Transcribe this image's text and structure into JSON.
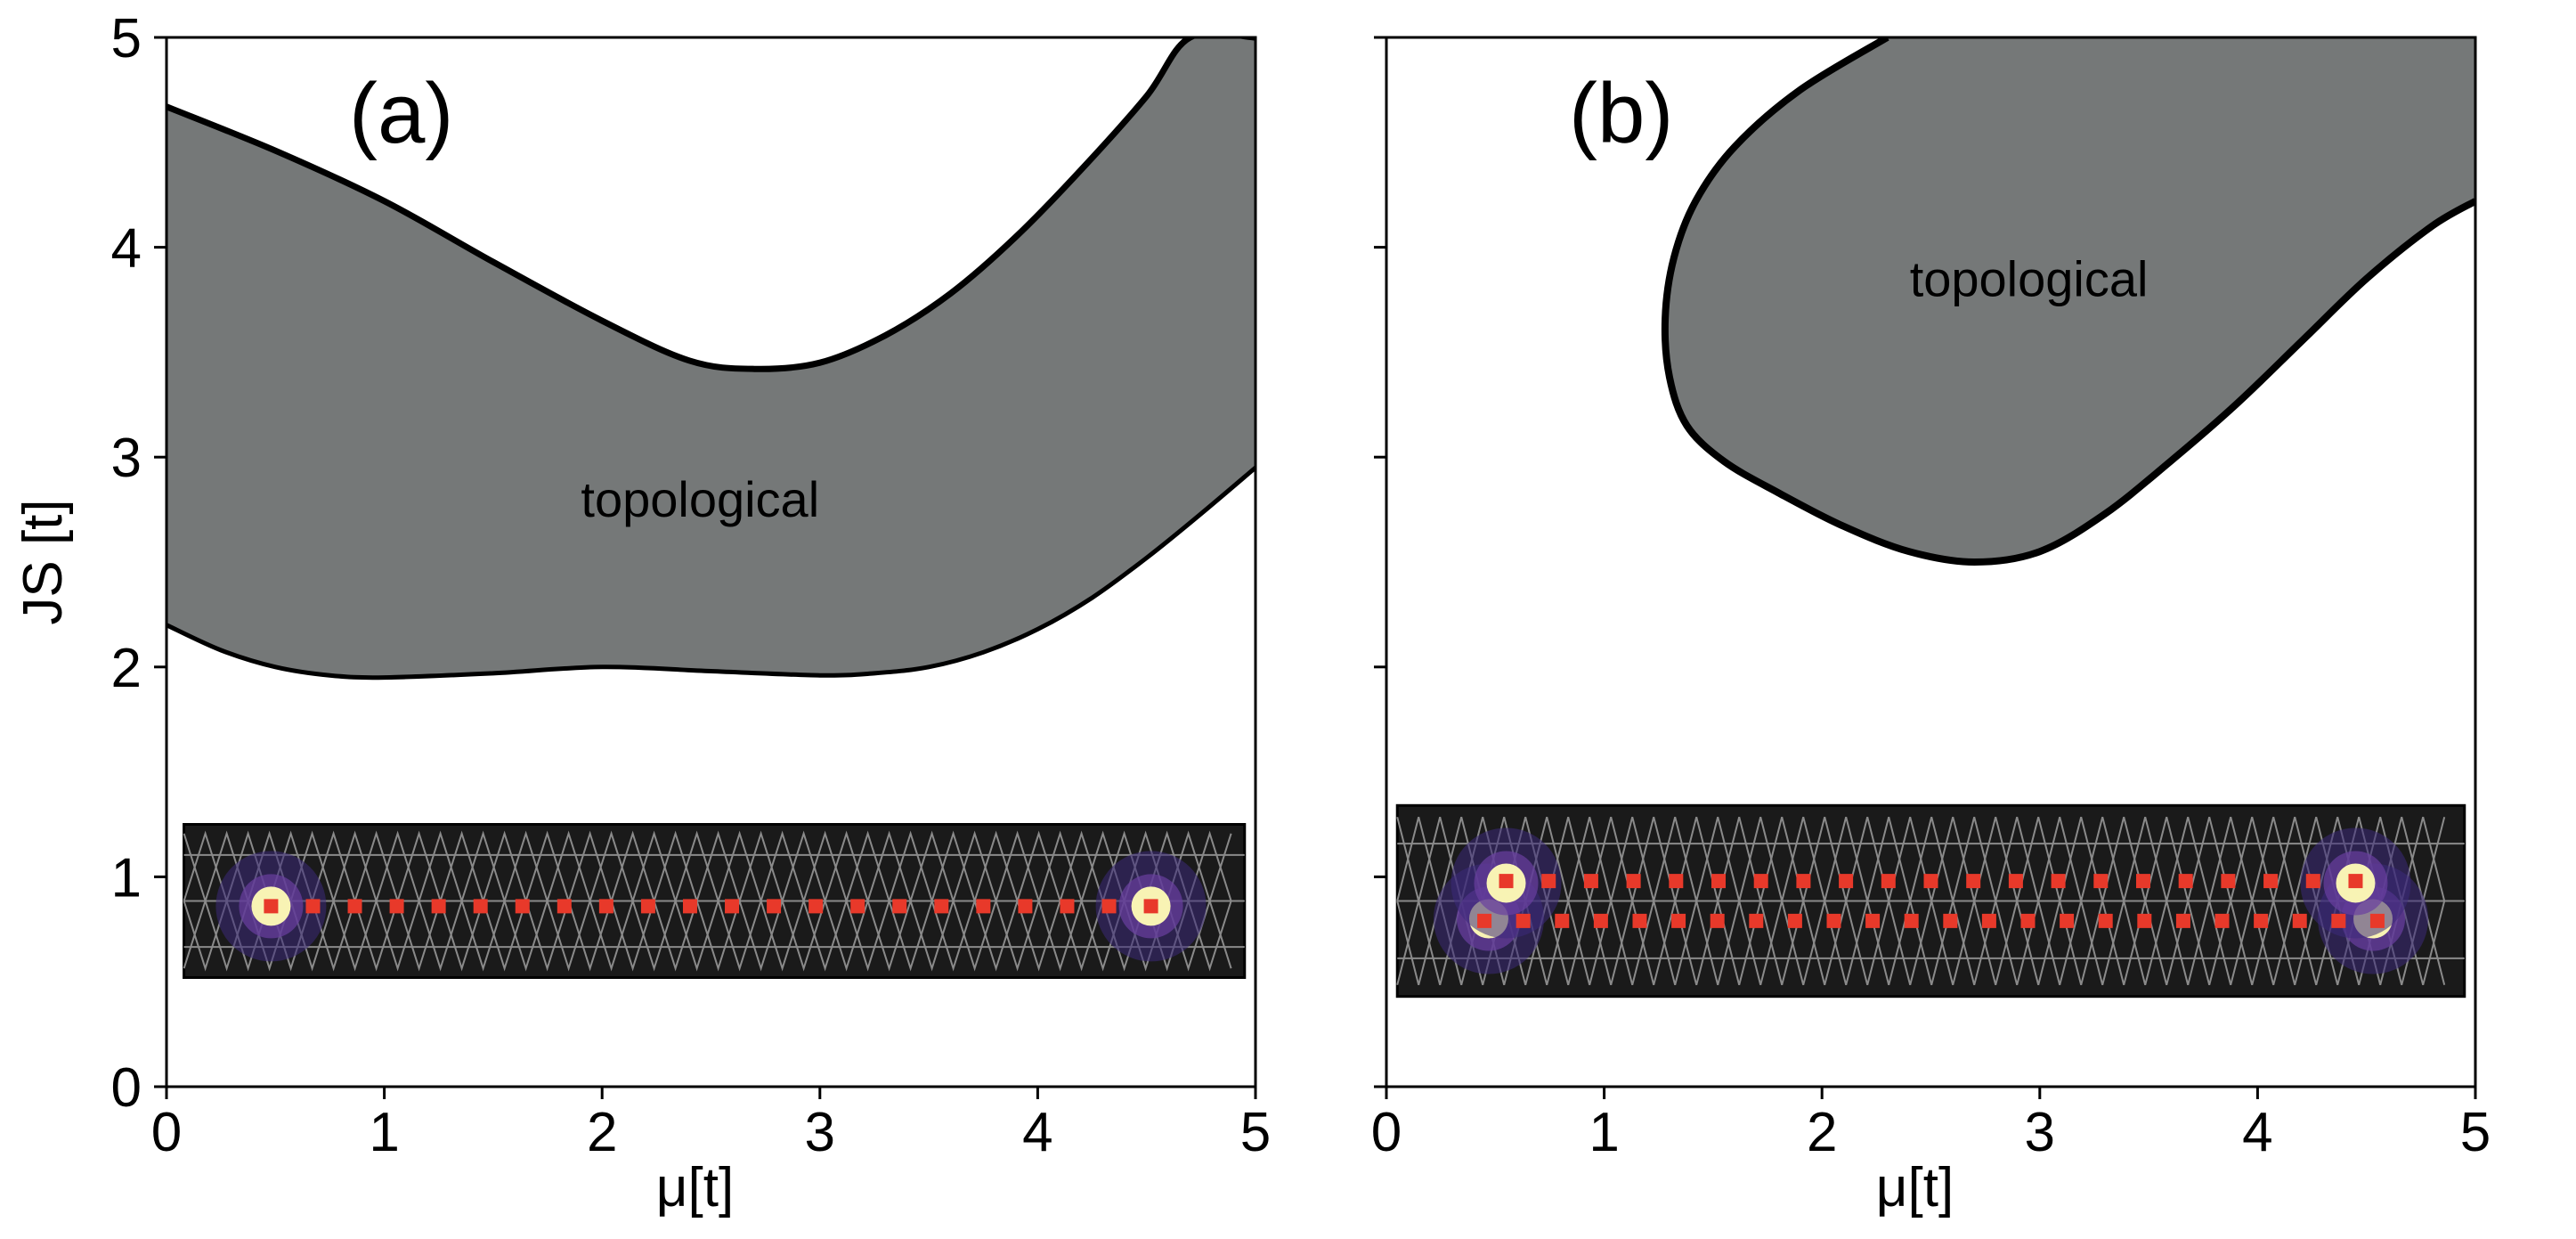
{
  "chart_data": [
    {
      "type": "area",
      "panel_label": "(a)",
      "xlabel": "μ[t]",
      "ylabel": "JS [t]",
      "xlim": [
        0,
        5
      ],
      "ylim": [
        0,
        5
      ],
      "xticks": [
        0,
        1,
        2,
        3,
        4,
        5
      ],
      "yticks": [
        0,
        1,
        2,
        3,
        4,
        5
      ],
      "xtick_labels": [
        "0",
        "1",
        "2",
        "3",
        "4",
        "5"
      ],
      "ytick_labels": [
        "0",
        "1",
        "2",
        "3",
        "4",
        "5"
      ],
      "grid": false,
      "region_label": "topological",
      "region_label_at": [
        2.45,
        2.78
      ],
      "region_fill": "#757878",
      "boundary_color": "#000000",
      "lower_boundary": {
        "x": [
          0,
          0.25,
          0.5,
          0.75,
          1.0,
          1.5,
          2.0,
          2.5,
          3.0,
          3.25,
          3.5,
          3.75,
          4.0,
          4.25,
          4.5,
          4.75,
          5.0
        ],
        "y": [
          2.2,
          2.08,
          2.0,
          1.96,
          1.95,
          1.97,
          2.0,
          1.98,
          1.96,
          1.97,
          2.0,
          2.07,
          2.18,
          2.33,
          2.52,
          2.73,
          2.95
        ]
      },
      "upper_boundary": {
        "x": [
          0,
          0.5,
          1.0,
          1.5,
          2.0,
          2.4,
          2.7,
          3.0,
          3.3,
          3.6,
          3.9,
          4.2,
          4.5,
          4.7,
          5.0
        ],
        "y": [
          4.67,
          4.46,
          4.22,
          3.93,
          3.65,
          3.46,
          3.42,
          3.45,
          3.58,
          3.78,
          4.05,
          4.37,
          4.72,
          5.0,
          5.0
        ]
      },
      "inset": {
        "x_range": [
          0.08,
          4.95
        ],
        "y_range": [
          0.52,
          1.25
        ],
        "background": "#1a1a1a",
        "lattice_color": "#8a8a8a",
        "chain_color": "#e8392a",
        "chains": [
          {
            "y": 0.86,
            "x_start": 0.48,
            "x_end": 4.52,
            "sites": 22
          }
        ],
        "end_states": [
          {
            "x": 0.48,
            "y": 0.86
          },
          {
            "x": 4.52,
            "y": 0.86
          }
        ]
      }
    },
    {
      "type": "area",
      "panel_label": "(b)",
      "xlabel": "μ[t]",
      "ylabel": "",
      "xlim": [
        0,
        5
      ],
      "ylim": [
        0,
        5
      ],
      "xticks": [
        0,
        1,
        2,
        3,
        4,
        5
      ],
      "yticks": [
        0,
        1,
        2,
        3,
        4,
        5
      ],
      "xtick_labels": [
        "0",
        "1",
        "2",
        "3",
        "4",
        "5"
      ],
      "ytick_labels": [],
      "grid": false,
      "region_label": "topological",
      "region_label_at": [
        2.95,
        3.83
      ],
      "region_fill": "#757878",
      "boundary_color": "#000000",
      "closed_region": {
        "x": [
          2.3,
          1.9,
          1.6,
          1.42,
          1.32,
          1.28,
          1.3,
          1.38,
          1.55,
          1.8,
          2.1,
          2.4,
          2.7,
          3.0,
          3.3,
          3.6,
          3.9,
          4.2,
          4.5,
          4.8,
          5.0,
          5.0
        ],
        "y": [
          5.0,
          4.75,
          4.48,
          4.22,
          3.95,
          3.66,
          3.38,
          3.15,
          2.98,
          2.83,
          2.67,
          2.55,
          2.5,
          2.55,
          2.73,
          2.98,
          3.25,
          3.55,
          3.85,
          4.1,
          4.22,
          5.0
        ]
      },
      "inset": {
        "x_range": [
          0.05,
          4.95
        ],
        "y_range": [
          0.43,
          1.34
        ],
        "background": "#1a1a1a",
        "lattice_color": "#8a8a8a",
        "chain_color": "#e8392a",
        "chains": [
          {
            "y": 0.98,
            "x_start": 0.55,
            "x_end": 4.45,
            "sites": 21
          },
          {
            "y": 0.79,
            "x_start": 0.45,
            "x_end": 4.55,
            "sites": 24
          }
        ],
        "end_states": [
          {
            "x": 0.47,
            "y": 0.8
          },
          {
            "x": 4.53,
            "y": 0.8
          },
          {
            "x": 0.55,
            "y": 0.97
          },
          {
            "x": 4.45,
            "y": 0.97
          }
        ]
      }
    }
  ]
}
